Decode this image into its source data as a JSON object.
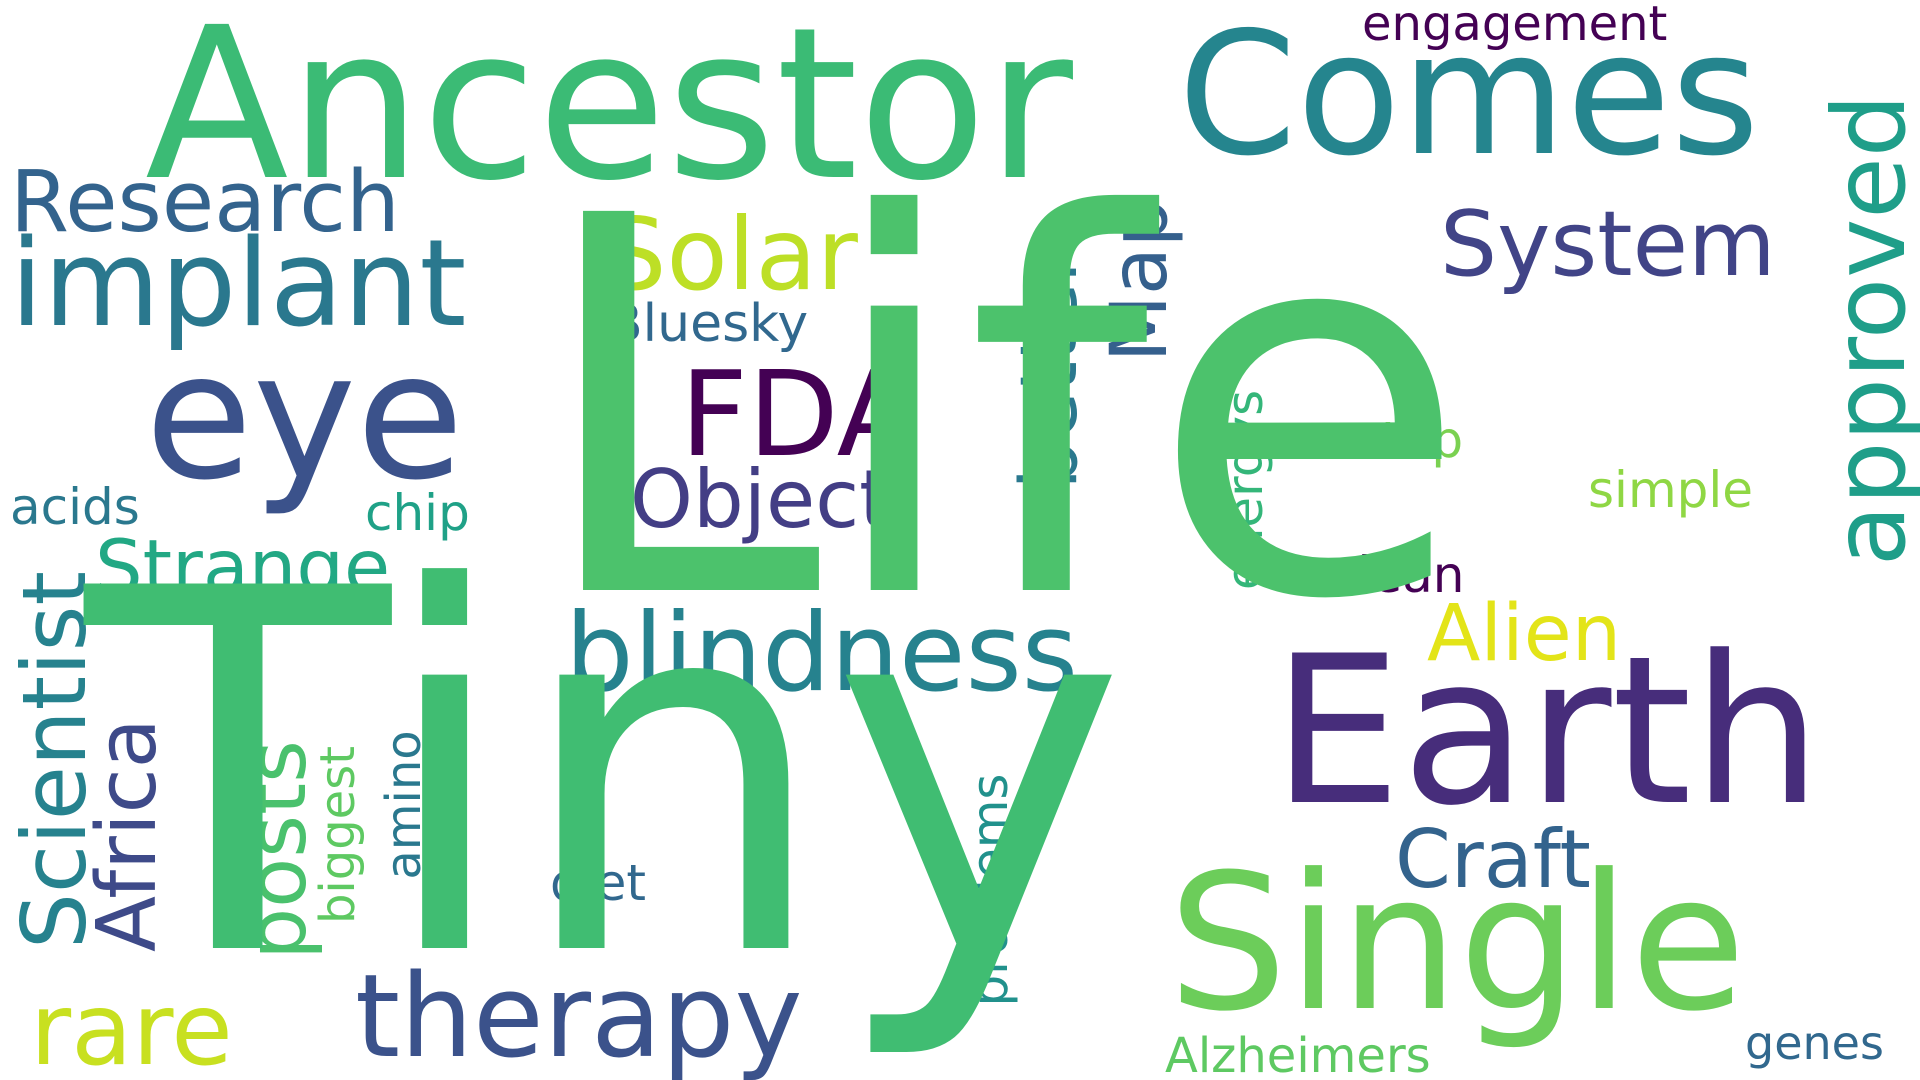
{
  "words": {
    "life": "Life",
    "tiny": "Tiny",
    "ancestor": "Ancestor",
    "comes": "Comes",
    "earth": "Earth",
    "single": "Single",
    "eye": "eye",
    "implant": "implant",
    "research": "Research",
    "solar": "Solar",
    "fda": "FDA",
    "object": "Object",
    "bluesky": "Bluesky",
    "system": "System",
    "engagement": "engagement",
    "approved": "approved",
    "better": "better",
    "map": "Map",
    "blindness": "blindness",
    "energys": "energys",
    "alien": "Alien",
    "craft": "Craft",
    "step": "step",
    "simple": "simple",
    "clean": "clean",
    "genes": "genes",
    "alzheimers": "Alzheimers",
    "therapy": "therapy",
    "problems": "problems",
    "diet": "diet",
    "rare": "rare",
    "scientist": "Scientist",
    "africa": "Africa",
    "posts": "posts",
    "biggest": "biggest",
    "amino": "amino",
    "strange": "Strange",
    "acids": "acids",
    "chip": "chip"
  },
  "colors": {
    "background": "#ffffff",
    "palette": "viridis"
  }
}
